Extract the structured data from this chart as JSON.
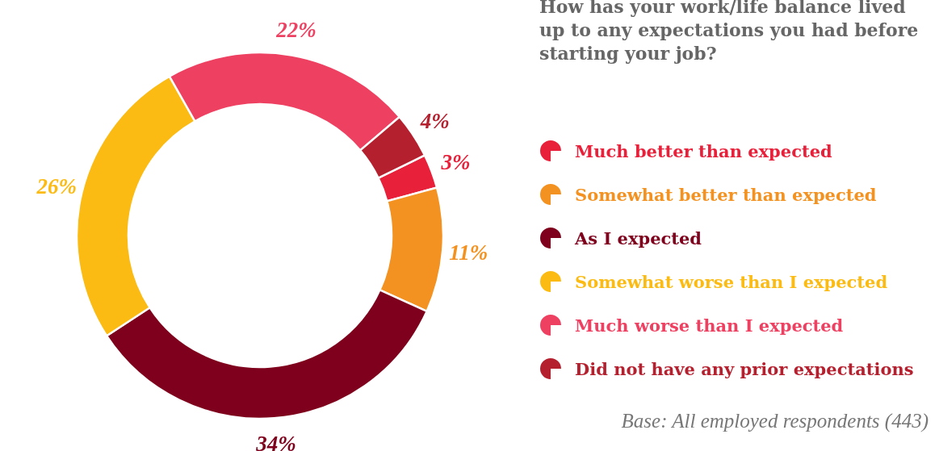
{
  "chart_data": {
    "type": "donut",
    "title": "How has your work/life balance lived up to any expectations you had before starting your job?",
    "categories": [
      "Much better than expected",
      "Somewhat better than expected",
      "As I expected",
      "Somewhat worse than I expected",
      "Much worse than I expected",
      "Did not have any prior expectations"
    ],
    "values": [
      3,
      11,
      34,
      26,
      22,
      4
    ],
    "colors": [
      "#e8203a",
      "#f39220",
      "#7f001c",
      "#fbbb13",
      "#ee4162",
      "#b5202f"
    ],
    "value_labels": [
      "3%",
      "11%",
      "34%",
      "26%",
      "22%",
      "4%"
    ],
    "legend": "right",
    "annotations": [
      "Base: All employed respondents (443)"
    ]
  }
}
